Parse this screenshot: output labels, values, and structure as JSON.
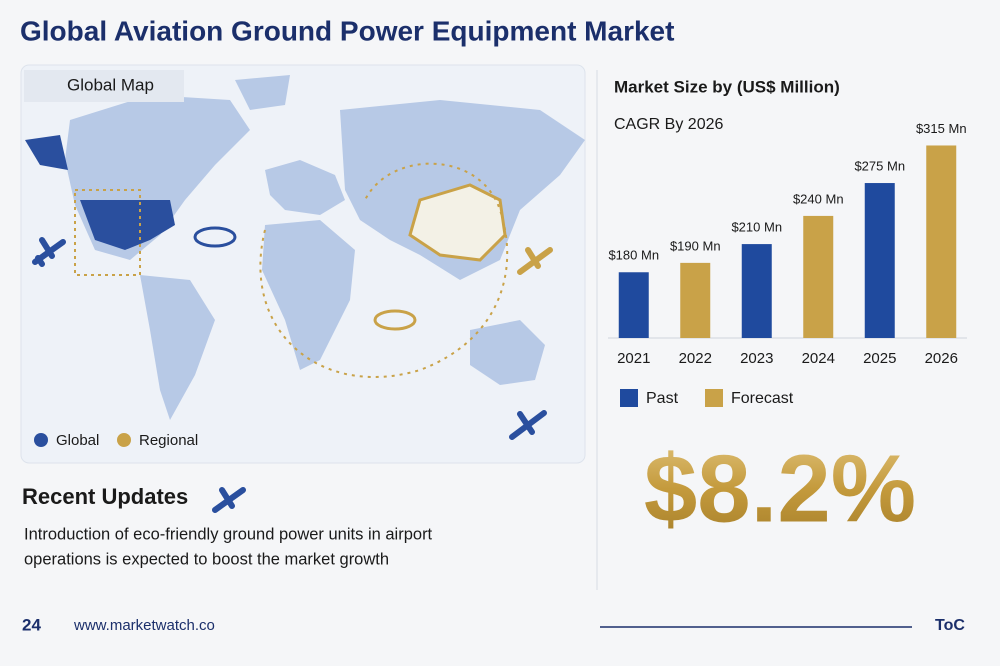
{
  "header": {
    "title": "Global Aviation Ground Power Equipment Market"
  },
  "map": {
    "title": "Global Map",
    "legend": [
      "Global",
      "Regional"
    ]
  },
  "chart_data": {
    "type": "bar",
    "title": "Market Size by (US$ Million)",
    "subtitle": "CAGR By 2026",
    "categories": [
      "2021",
      "2022",
      "2023",
      "2024",
      "2025",
      "2026"
    ],
    "series": [
      {
        "name": "Past",
        "color": "#1f4a9e",
        "values": [
          180,
          null,
          210,
          null,
          275,
          null
        ],
        "value_labels": [
          "$180 Mn",
          null,
          "$210 Mn",
          null,
          "$275 Mn",
          null
        ]
      },
      {
        "name": "Forecast",
        "color": "#c9a248",
        "values": [
          null,
          190,
          null,
          240,
          null,
          315
        ],
        "value_labels": [
          null,
          "$190 Mn",
          null,
          "$240 Mn",
          null,
          "$315 Mn"
        ]
      }
    ],
    "ylim": [
      110,
      340
    ]
  },
  "cagr": "$8.2%",
  "updates": {
    "title": "Recent Updates",
    "lines": [
      "Introduction of eco-friendly ground power units in airport",
      "operations is expected to boost the market growth"
    ]
  },
  "footer": {
    "page": "24",
    "url": "www.marketwatch.co",
    "toc": "ToC"
  }
}
